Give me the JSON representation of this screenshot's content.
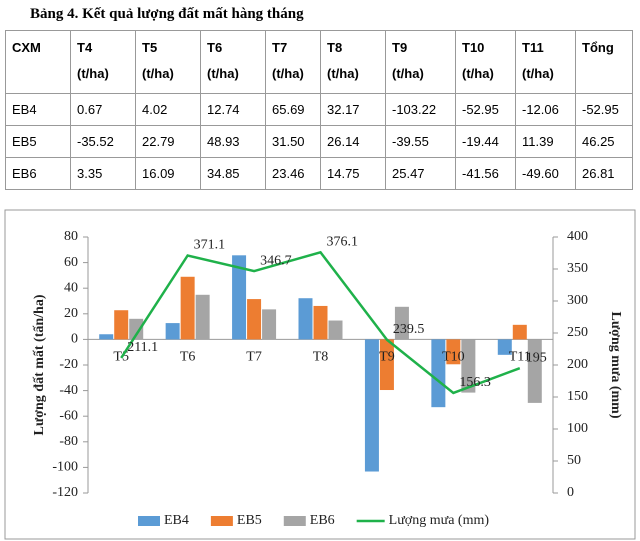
{
  "table_title": "Bảng 4. Kết quả lượng đất mất hàng tháng",
  "table": {
    "header": [
      {
        "name": "CXM"
      },
      {
        "name": "T4",
        "unit": "(t/ha)"
      },
      {
        "name": "T5",
        "unit": "(t/ha)"
      },
      {
        "name": "T6",
        "unit": "(t/ha)"
      },
      {
        "name": "T7",
        "unit": "(t/ha)"
      },
      {
        "name": "T8",
        "unit": "(t/ha)"
      },
      {
        "name": "T9",
        "unit": "(t/ha)"
      },
      {
        "name": "T10",
        "unit": "(t/ha)"
      },
      {
        "name": "T11",
        "unit": "(t/ha)"
      },
      {
        "name": "Tổng"
      }
    ],
    "rows": [
      [
        "EB4",
        "0.67",
        "4.02",
        "12.74",
        "65.69",
        "32.17",
        "-103.22",
        "-52.95",
        "-12.06",
        "-52.95"
      ],
      [
        "EB5",
        "-35.52",
        "22.79",
        "48.93",
        "31.50",
        "26.14",
        "-39.55",
        "-19.44",
        "11.39",
        "46.25"
      ],
      [
        "EB6",
        "3.35",
        "16.09",
        "34.85",
        "23.46",
        "14.75",
        "25.47",
        "-41.56",
        "-49.60",
        "26.81"
      ]
    ]
  },
  "chart_data": {
    "type": "bar",
    "categories": [
      "T5",
      "T6",
      "T7",
      "T8",
      "T9",
      "T10",
      "T11"
    ],
    "series": [
      {
        "name": "EB4",
        "color": "#5b9bd5",
        "values": [
          4.02,
          12.74,
          65.69,
          32.17,
          -103.22,
          -52.95,
          -12.06
        ]
      },
      {
        "name": "EB5",
        "color": "#ed7d31",
        "values": [
          22.79,
          48.93,
          31.5,
          26.14,
          -39.55,
          -19.44,
          11.39
        ]
      },
      {
        "name": "EB6",
        "color": "#a5a5a5",
        "values": [
          16.09,
          34.85,
          23.46,
          14.75,
          25.47,
          -41.56,
          -49.6
        ]
      },
      {
        "name": "Lượng mưa (mm)",
        "color": "#1fb14a",
        "type": "line",
        "axis": "y2",
        "values": [
          211.1,
          371.1,
          346.7,
          376.1,
          239.5,
          156.3,
          195
        ]
      }
    ],
    "ylabel": "Lượng đất mất (tấn/ha)",
    "y2label": "Lượng mưa (mm)",
    "ylim": [
      -120,
      80
    ],
    "yticks": [
      -120,
      -100,
      -80,
      -60,
      -40,
      -20,
      0,
      20,
      40,
      60,
      80
    ],
    "y2lim": [
      0,
      400
    ],
    "y2ticks": [
      0,
      50,
      100,
      150,
      200,
      250,
      300,
      350,
      400
    ],
    "legend": "bottom"
  }
}
